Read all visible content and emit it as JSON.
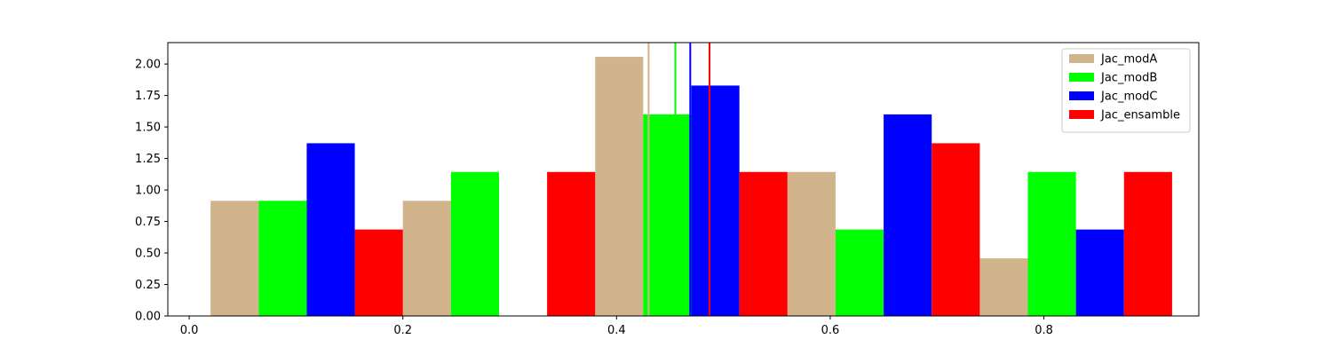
{
  "chart_data": {
    "type": "bar",
    "title": "",
    "xlabel": "",
    "ylabel": "",
    "xlim": [
      -0.02,
      0.945
    ],
    "ylim": [
      0,
      2.17
    ],
    "bin_width": 0.18,
    "bin_starts": [
      0.02,
      0.2,
      0.38,
      0.56,
      0.74
    ],
    "xticks": [
      0.0,
      0.2,
      0.4,
      0.6,
      0.8
    ],
    "xtick_labels": [
      "0.0",
      "0.2",
      "0.4",
      "0.6",
      "0.8"
    ],
    "yticks": [
      0,
      0.25,
      0.5,
      0.75,
      1.0,
      1.25,
      1.5,
      1.75,
      2.0
    ],
    "ytick_labels": [
      "0.00",
      "0.25",
      "0.50",
      "0.75",
      "1.00",
      "1.25",
      "1.50",
      "1.75",
      "2.00"
    ],
    "series": [
      {
        "name": "Jac_modA",
        "color": "#d2b48c",
        "values": [
          0.914,
          0.914,
          2.057,
          1.143,
          0.457
        ],
        "mean": 0.43
      },
      {
        "name": "Jac_modB",
        "color": "#00ff00",
        "values": [
          0.914,
          1.143,
          1.6,
          0.686,
          1.143
        ],
        "mean": 0.455
      },
      {
        "name": "Jac_modC",
        "color": "#0000ff",
        "values": [
          1.371,
          0.0,
          1.829,
          1.6,
          0.686
        ],
        "mean": 0.469
      },
      {
        "name": "Jac_ensamble",
        "color": "#ff0000",
        "values": [
          0.686,
          1.143,
          1.143,
          1.371,
          1.143
        ],
        "mean": 0.487
      }
    ],
    "legend_position": "top-right",
    "grid": false
  }
}
